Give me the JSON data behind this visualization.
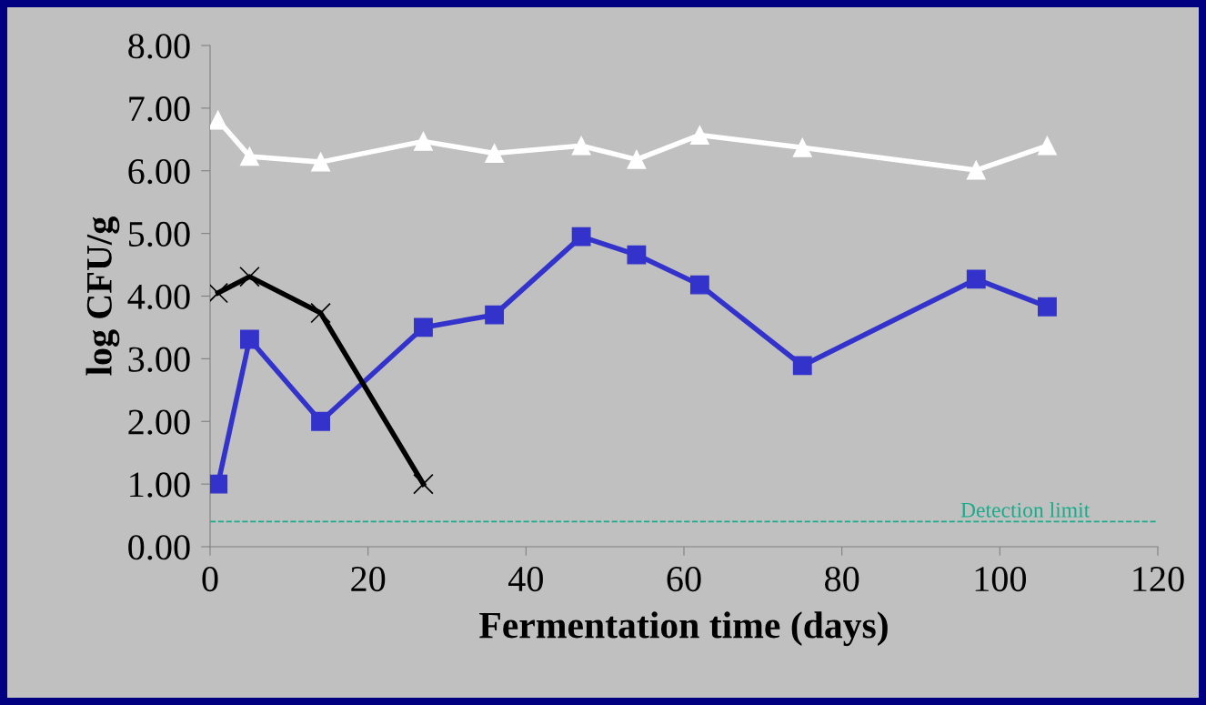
{
  "chart_data": {
    "type": "line",
    "xlabel": "Fermentation time (days)",
    "ylabel": "log CFU/g",
    "xlim": [
      0,
      120
    ],
    "xticks": [
      0,
      20,
      40,
      60,
      80,
      100,
      120
    ],
    "ylim": [
      0,
      8
    ],
    "yticks": [
      {
        "value": 0,
        "label": "0.00"
      },
      {
        "value": 1,
        "label": "1.00"
      },
      {
        "value": 2,
        "label": "2.00"
      },
      {
        "value": 3,
        "label": "3.00"
      },
      {
        "value": 4,
        "label": "4.00"
      },
      {
        "value": 5,
        "label": "5.00"
      },
      {
        "value": 6,
        "label": "6.00"
      },
      {
        "value": 7,
        "label": "7.00"
      },
      {
        "value": 8,
        "label": "8.00"
      }
    ],
    "grid": false,
    "legend": false,
    "line_style": "solid",
    "series": [
      {
        "color": "#ffffff",
        "marker": "triangle",
        "x": [
          1,
          5,
          14,
          27,
          36,
          47,
          54,
          62,
          75,
          97,
          106
        ],
        "values": [
          6.81,
          6.23,
          6.14,
          6.47,
          6.28,
          6.4,
          6.18,
          6.57,
          6.37,
          6.01,
          6.4
        ]
      },
      {
        "color": "#3333cc",
        "marker": "square",
        "x": [
          1,
          5,
          14,
          27,
          36,
          47,
          54,
          62,
          75,
          97,
          106
        ],
        "values": [
          1.0,
          3.31,
          2.0,
          3.5,
          3.7,
          4.95,
          4.66,
          4.18,
          2.89,
          4.27,
          3.83
        ]
      },
      {
        "color": "#000000",
        "marker": "cross",
        "x": [
          1,
          5,
          14,
          27
        ],
        "values": [
          4.05,
          4.31,
          3.73,
          1.0
        ]
      }
    ],
    "ref_lines": [
      {
        "axis": "y",
        "value": 0.4,
        "label": "Detection limit",
        "color": "#1aab8a",
        "line_style": "dashed"
      }
    ]
  }
}
